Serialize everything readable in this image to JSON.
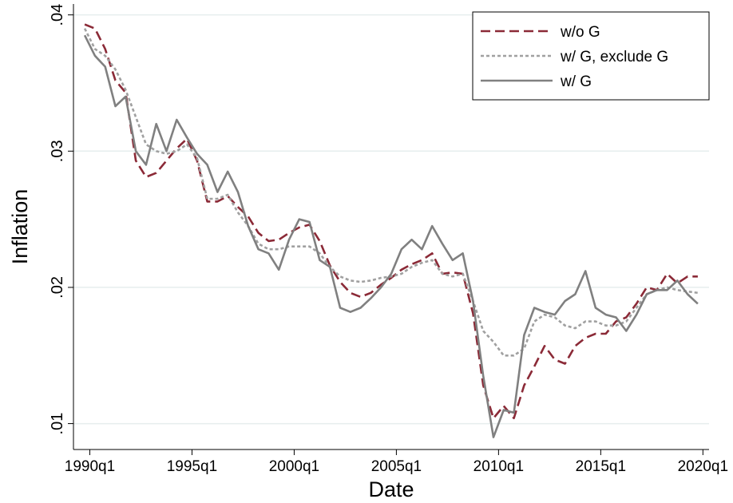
{
  "chart_data": {
    "type": "line",
    "x_label": "Date",
    "y_label": "Inflation",
    "x": [
      "1989q4",
      "1990q2",
      "1990q4",
      "1991q2",
      "1991q4",
      "1992q2",
      "1992q4",
      "1993q2",
      "1993q4",
      "1994q2",
      "1994q4",
      "1995q2",
      "1995q4",
      "1996q2",
      "1996q4",
      "1997q2",
      "1997q4",
      "1998q2",
      "1998q4",
      "1999q2",
      "1999q4",
      "2000q2",
      "2000q4",
      "2001q2",
      "2001q4",
      "2002q2",
      "2002q4",
      "2003q2",
      "2003q4",
      "2004q2",
      "2004q4",
      "2005q2",
      "2005q4",
      "2006q2",
      "2006q4",
      "2007q2",
      "2007q4",
      "2008q2",
      "2008q4",
      "2009q2",
      "2009q4",
      "2010q2",
      "2010q4",
      "2011q2",
      "2011q4",
      "2012q2",
      "2012q4",
      "2013q2",
      "2013q4",
      "2014q2",
      "2014q4",
      "2015q2",
      "2015q4",
      "2016q2",
      "2016q4",
      "2017q2",
      "2017q4",
      "2018q2",
      "2018q4",
      "2019q2",
      "2019q4"
    ],
    "series": [
      {
        "name": "w/o G",
        "color": "#8b2a37",
        "dash": "dashed",
        "values": [
          0.0393,
          0.039,
          0.0375,
          0.0352,
          0.0343,
          0.0293,
          0.0281,
          0.0284,
          0.0293,
          0.0302,
          0.0309,
          0.0293,
          0.0263,
          0.0263,
          0.0267,
          0.0259,
          0.0252,
          0.024,
          0.0234,
          0.0235,
          0.024,
          0.0244,
          0.0246,
          0.0234,
          0.0216,
          0.0204,
          0.0196,
          0.0193,
          0.0196,
          0.0202,
          0.0207,
          0.0213,
          0.0217,
          0.022,
          0.0225,
          0.021,
          0.0211,
          0.021,
          0.0181,
          0.0128,
          0.0104,
          0.0113,
          0.0104,
          0.0128,
          0.0142,
          0.0157,
          0.0147,
          0.0144,
          0.0157,
          0.0163,
          0.0166,
          0.0166,
          0.0175,
          0.0178,
          0.0188,
          0.02,
          0.0198,
          0.021,
          0.0203,
          0.0208,
          0.0208
        ]
      },
      {
        "name": "w/ G, exclude G",
        "color": "#a0a0a0",
        "dash": "dotted",
        "values": [
          0.039,
          0.0375,
          0.037,
          0.036,
          0.0345,
          0.0325,
          0.0305,
          0.03,
          0.0298,
          0.03,
          0.0305,
          0.0295,
          0.0265,
          0.0265,
          0.0268,
          0.0255,
          0.0245,
          0.0232,
          0.0228,
          0.0228,
          0.023,
          0.023,
          0.023,
          0.0225,
          0.0215,
          0.0208,
          0.0205,
          0.0204,
          0.0205,
          0.0207,
          0.0208,
          0.021,
          0.0215,
          0.0218,
          0.022,
          0.021,
          0.0208,
          0.021,
          0.019,
          0.0168,
          0.016,
          0.015,
          0.015,
          0.0155,
          0.0175,
          0.018,
          0.0178,
          0.0172,
          0.017,
          0.0175,
          0.0175,
          0.0172,
          0.0172,
          0.0175,
          0.0185,
          0.0195,
          0.0198,
          0.02,
          0.0198,
          0.0197,
          0.0196
        ]
      },
      {
        "name": "w/ G",
        "color": "#808080",
        "dash": "solid",
        "values": [
          0.0385,
          0.037,
          0.0362,
          0.0333,
          0.034,
          0.03,
          0.029,
          0.032,
          0.03,
          0.0323,
          0.031,
          0.0298,
          0.029,
          0.027,
          0.0285,
          0.027,
          0.0245,
          0.0228,
          0.0225,
          0.0213,
          0.0235,
          0.025,
          0.0248,
          0.022,
          0.0215,
          0.0185,
          0.0182,
          0.0185,
          0.0192,
          0.02,
          0.021,
          0.0228,
          0.0235,
          0.0228,
          0.0245,
          0.0232,
          0.022,
          0.0225,
          0.019,
          0.0135,
          0.009,
          0.011,
          0.0108,
          0.0165,
          0.0185,
          0.0182,
          0.018,
          0.019,
          0.0195,
          0.0212,
          0.0185,
          0.018,
          0.0178,
          0.0168,
          0.018,
          0.0195,
          0.0198,
          0.0198,
          0.0205,
          0.0195,
          0.0188
        ]
      }
    ],
    "xlim": [
      1989.2,
      2020.3
    ],
    "xticks": [
      {
        "value": 1990,
        "label": "1990q1"
      },
      {
        "value": 1995,
        "label": "1995q1"
      },
      {
        "value": 2000,
        "label": "2000q1"
      },
      {
        "value": 2005,
        "label": "2005q1"
      },
      {
        "value": 2010,
        "label": "2010q1"
      },
      {
        "value": 2015,
        "label": "2015q1"
      },
      {
        "value": 2020,
        "label": "2020q1"
      }
    ],
    "ylim": [
      0.0081,
      0.0408
    ],
    "yticks": [
      {
        "value": 0.01,
        "label": ".01"
      },
      {
        "value": 0.02,
        "label": ".02"
      },
      {
        "value": 0.03,
        "label": ".03"
      },
      {
        "value": 0.04,
        "label": ".04"
      }
    ],
    "grid": true,
    "legend_position": "top-right"
  }
}
